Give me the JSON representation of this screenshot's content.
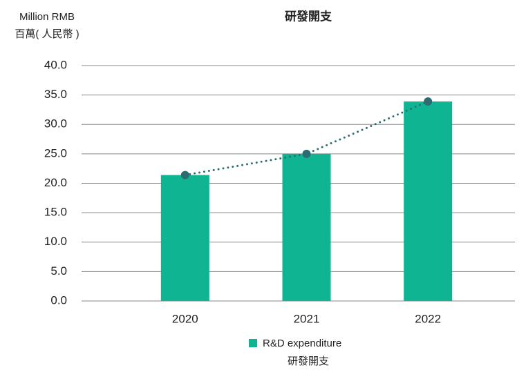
{
  "chart_data": {
    "type": "bar",
    "title": "研發開支",
    "y_label": "Million RMB",
    "y_label_zh": "百萬( 人民幣 )",
    "categories": [
      "2020",
      "2021",
      "2022"
    ],
    "series": [
      {
        "name": "R&D expenditure",
        "name_zh": "研發開支",
        "color": "#0fb592",
        "values": [
          21.4,
          25.0,
          33.9
        ]
      }
    ],
    "line_overlay": {
      "color": "#2b6d72",
      "style": "dotted",
      "markers": true
    },
    "ylim": [
      0,
      40
    ],
    "yticks": [
      {
        "value": 0,
        "label": "0.0"
      },
      {
        "value": 5,
        "label": "5.0"
      },
      {
        "value": 10,
        "label": "10.0"
      },
      {
        "value": 15,
        "label": "15.0"
      },
      {
        "value": 20,
        "label": "20.0"
      },
      {
        "value": 25,
        "label": "25.0"
      },
      {
        "value": 30,
        "label": "30.0"
      },
      {
        "value": 35,
        "label": "35.0"
      },
      {
        "value": 40,
        "label": "40.0"
      }
    ],
    "grid": true,
    "legend": "bottom"
  }
}
